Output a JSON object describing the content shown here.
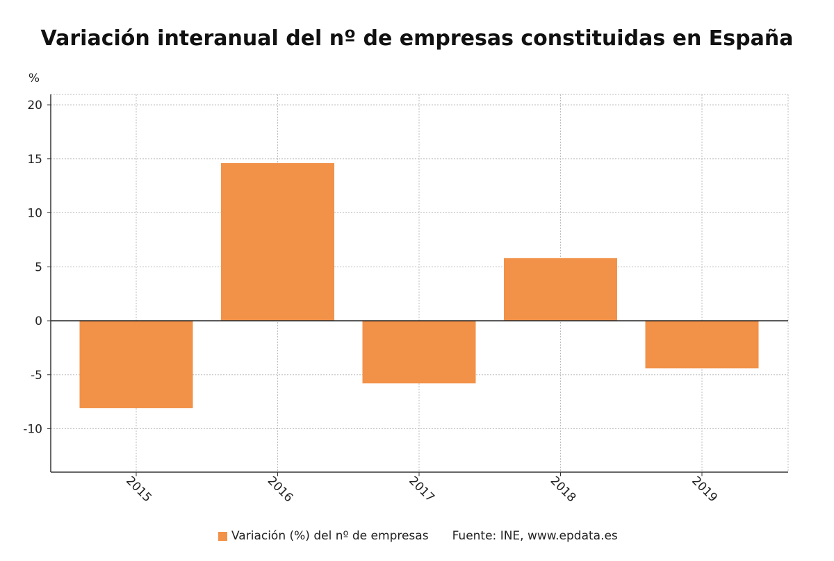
{
  "chart_data": {
    "type": "bar",
    "title": "Variación interanual del nº de empresas constituidas en España",
    "ylabel": "%",
    "categories": [
      "2015",
      "2016",
      "2017",
      "2018",
      "2019"
    ],
    "series": [
      {
        "name": "Variación (%) del nº de empresas",
        "values": [
          -8.1,
          14.6,
          -5.8,
          5.8,
          -4.4
        ],
        "color": "#f29148"
      }
    ],
    "ylim": [
      -14,
      21
    ],
    "yticks": [
      20,
      15,
      10,
      5,
      0,
      -5,
      -10
    ],
    "ytick_labels": [
      "20",
      "15",
      "10",
      "5",
      "0",
      "-5",
      "-10"
    ],
    "grid": true,
    "legend_position": "bottom",
    "source": "Fuente: INE, www.epdata.es"
  }
}
